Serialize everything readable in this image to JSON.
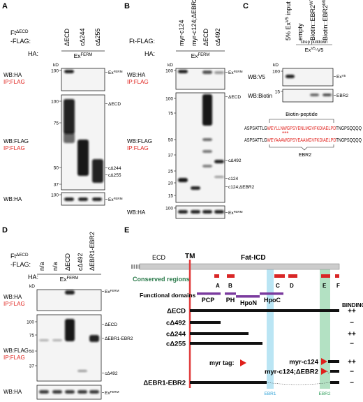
{
  "panels": {
    "a": {
      "letter": "A",
      "construct": {
        "base": "Ft",
        "sup": "ΔECD"
      },
      "construct_suffix": "-FLAG:",
      "ha": "HA:",
      "lanes": [
        "ΔECD",
        "cΔ244",
        "cΔ255"
      ],
      "ha_lane": {
        "base": "Ex",
        "sup": "FERM"
      },
      "kd": "kD",
      "blots": [
        {
          "wb": "WB:HA",
          "ip": "IP:FLAG",
          "markers": [
            100
          ],
          "labels": [
            {
              "base": "Ex",
              "sup": "FERM"
            }
          ]
        },
        {
          "wb": "WB:FLAG",
          "ip": "IP:FLAG",
          "markers": [
            100,
            75,
            50,
            37
          ],
          "labels": [
            "ΔECD",
            "cΔ244",
            "cΔ255"
          ]
        },
        {
          "wb": "WB:HA",
          "markers": [
            100
          ],
          "labels": [
            {
              "base": "Ex",
              "sup": "FERM"
            }
          ]
        }
      ]
    },
    "b": {
      "letter": "B",
      "construct": "Ft-FLAG:",
      "ha": "HA:",
      "lanes": [
        "myr-c124",
        "myr-c124;ΔEBR2",
        "ΔECD",
        "cΔ492"
      ],
      "ha_lane": {
        "base": "Ex",
        "sup": "FERM"
      },
      "kd": "kD",
      "blots": [
        {
          "wb": "WB:HA",
          "ip": "IP:FLAG",
          "markers": [
            100
          ],
          "labels": [
            {
              "base": "Ex",
              "sup": "FERM"
            }
          ]
        },
        {
          "wb": "WB:FLAG",
          "ip": "IP:FLAG",
          "markers": [
            100,
            75,
            50,
            37,
            25,
            20,
            15
          ],
          "labels": [
            "ΔECD",
            "cΔ492",
            "c124",
            "c124;ΔEBR2"
          ]
        },
        {
          "wb": "WB:HA",
          "markers": [
            100
          ],
          "labels": [
            {
              "base": "Ex",
              "sup": "FERM"
            }
          ]
        }
      ]
    },
    "c": {
      "letter": "C",
      "lanes": [
        {
          "base": "5% Ex",
          "sup": "V5",
          "post": " input"
        },
        "empty",
        {
          "base": "Biotin::EBR2",
          "sup": "WT"
        },
        {
          "base": "Biotin::EBR2",
          "sup": "MUT"
        }
      ],
      "pulldown": "strep pulldown",
      "pulldown_target": {
        "base": "Ex",
        "sup": "V5",
        "post": "-V5"
      },
      "kd": "kD",
      "blots": [
        {
          "wb": "WB:V5",
          "markers": [
            100
          ],
          "labels": [
            {
              "base": "Ex",
              "sup": "V5"
            }
          ]
        },
        {
          "wb": "WB:Biotin",
          "markers": [
            15
          ],
          "labels": [
            "EBR2"
          ]
        }
      ],
      "peptide_title": "Biotin-peptide",
      "sequences": [
        {
          "pre": "ASPSATTLG",
          "red": "WEYLLNWGPSYENLMGVFKDIAELPD",
          "post": "TNGPSQQQQ"
        },
        {
          "pre": "ASPSATTLG",
          "red": "WEYAAAWGPSYEAAMGVFKDIAELPD",
          "post": "TNGPSQQQQ"
        }
      ],
      "mutations": "***",
      "region": "EBR2"
    },
    "d": {
      "letter": "D",
      "construct": {
        "base": "Ft",
        "sup": "ΔECD"
      },
      "construct_suffix": "-FLAG:",
      "ha": "HA:",
      "lanes": [
        "n/a",
        "n/a",
        "ΔECD",
        "cΔ492",
        "ΔEBR1-EBR2"
      ],
      "ha_lane": {
        "base": "Ex",
        "sup": "FERM"
      },
      "kd": "kD",
      "blots": [
        {
          "wb": "WB:HA",
          "ip": "IP:FLAG",
          "labels": [
            {
              "base": "Ex",
              "sup": "FERM"
            }
          ]
        },
        {
          "wb": "WB:FLAG",
          "ip": "IP:FLAG",
          "markers": [
            100,
            75,
            50,
            37
          ],
          "labels": [
            "ΔECD",
            "ΔEBR1-EBR2",
            "cΔ492"
          ]
        },
        {
          "wb": "WB:HA",
          "labels": [
            {
              "base": "Ex",
              "sup": "FERM"
            }
          ]
        }
      ]
    },
    "e": {
      "letter": "E",
      "ecd": "ECD",
      "tm": "TM",
      "icd": "Fat-ICD",
      "conserved_title": "Conserved regions",
      "conserved": [
        "A",
        "B",
        "C",
        "D",
        "E",
        "F"
      ],
      "domains_title": "Functional domains",
      "domains": [
        "PCP",
        "PH",
        "HpoN",
        "HpoC"
      ],
      "binding_title": "BINDING:",
      "myr_tag": "myr tag:",
      "constructs": [
        {
          "name": "ΔECD",
          "binding": "++"
        },
        {
          "name": "cΔ492",
          "binding": "−"
        },
        {
          "name": "cΔ244",
          "binding": "++"
        },
        {
          "name": "cΔ255",
          "binding": "−"
        },
        {
          "name": "myr-c124",
          "binding": "++"
        },
        {
          "name": "myr-c124;ΔEBR2",
          "binding": "−"
        },
        {
          "name": "ΔEBR1-EBR2",
          "binding": "−"
        }
      ],
      "ebr1": "EBR1",
      "ebr2": "EBR2"
    }
  }
}
